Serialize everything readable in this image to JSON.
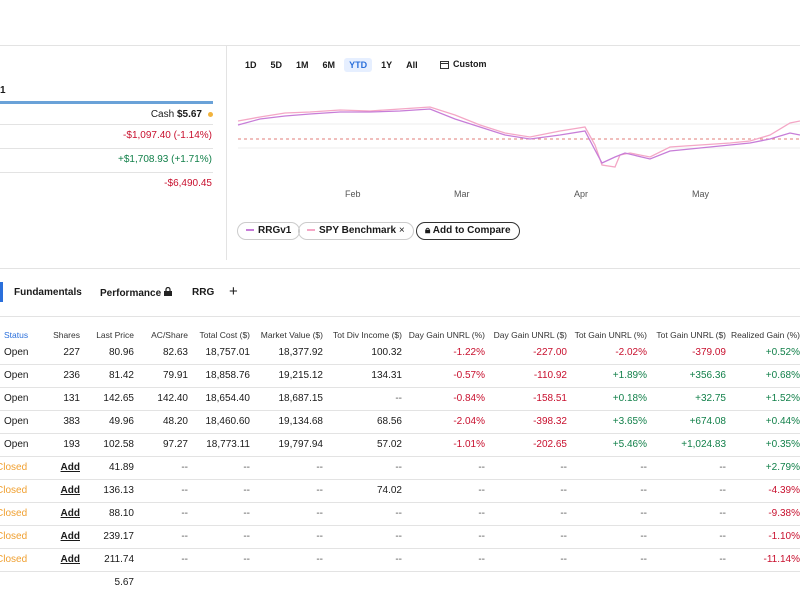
{
  "left_panel": {
    "label": "1",
    "cash_label": "Cash",
    "cash": "$5.67",
    "rows": [
      "-$1,097.40 (-1.14%)",
      "+$1,708.93 (+1.71%)",
      "-$6,490.45"
    ]
  },
  "chart": {
    "ranges": [
      "1D",
      "5D",
      "1M",
      "6M",
      "YTD",
      "1Y",
      "All"
    ],
    "custom": "Custom",
    "months": [
      "Feb",
      "Mar",
      "Apr",
      "May"
    ],
    "legend": [
      "RRGv1",
      "SPY Benchmark"
    ],
    "add_compare": "Add to Compare"
  },
  "tabs": [
    "Fundamentals",
    "Performance",
    "RRG"
  ],
  "table": {
    "headers": [
      "Status",
      "Shares",
      "Last Price",
      "AC/Share",
      "Total Cost ($)",
      "Market Value ($)",
      "Tot Div Income ($)",
      "Day Gain UNRL (%)",
      "Day Gain UNRL ($)",
      "Tot Gain UNRL (%)",
      "Tot Gain UNRL ($)",
      "Realized Gain (%)"
    ],
    "rows": [
      [
        "Open",
        "227",
        "80.96",
        "82.63",
        "18,757.01",
        "18,377.92",
        "100.32",
        "-1.22%",
        "-227.00",
        "-2.02%",
        "-379.09",
        "+0.52%"
      ],
      [
        "Open",
        "236",
        "81.42",
        "79.91",
        "18,858.76",
        "19,215.12",
        "134.31",
        "-0.57%",
        "-110.92",
        "+1.89%",
        "+356.36",
        "+0.68%"
      ],
      [
        "Open",
        "131",
        "142.65",
        "142.40",
        "18,654.40",
        "18,687.15",
        "--",
        "-0.84%",
        "-158.51",
        "+0.18%",
        "+32.75",
        "+1.52%"
      ],
      [
        "Open",
        "383",
        "49.96",
        "48.20",
        "18,460.60",
        "19,134.68",
        "68.56",
        "-2.04%",
        "-398.32",
        "+3.65%",
        "+674.08",
        "+0.44%"
      ],
      [
        "Open",
        "193",
        "102.58",
        "97.27",
        "18,773.11",
        "19,797.94",
        "57.02",
        "-1.01%",
        "-202.65",
        "+5.46%",
        "+1,024.83",
        "+0.35%"
      ],
      [
        "Closed",
        "Add",
        "41.89",
        "--",
        "--",
        "--",
        "--",
        "--",
        "--",
        "--",
        "--",
        "+2.79%"
      ],
      [
        "Closed",
        "Add",
        "136.13",
        "--",
        "--",
        "--",
        "74.02",
        "--",
        "--",
        "--",
        "--",
        "-4.39%"
      ],
      [
        "Closed",
        "Add",
        "88.10",
        "--",
        "--",
        "--",
        "--",
        "--",
        "--",
        "--",
        "--",
        "-9.38%"
      ],
      [
        "Closed",
        "Add",
        "239.17",
        "--",
        "--",
        "--",
        "--",
        "--",
        "--",
        "--",
        "--",
        "-1.10%"
      ],
      [
        "Closed",
        "Add",
        "211.74",
        "--",
        "--",
        "--",
        "--",
        "--",
        "--",
        "--",
        "--",
        "-11.14%"
      ]
    ],
    "total_last_price": "5.67"
  }
}
